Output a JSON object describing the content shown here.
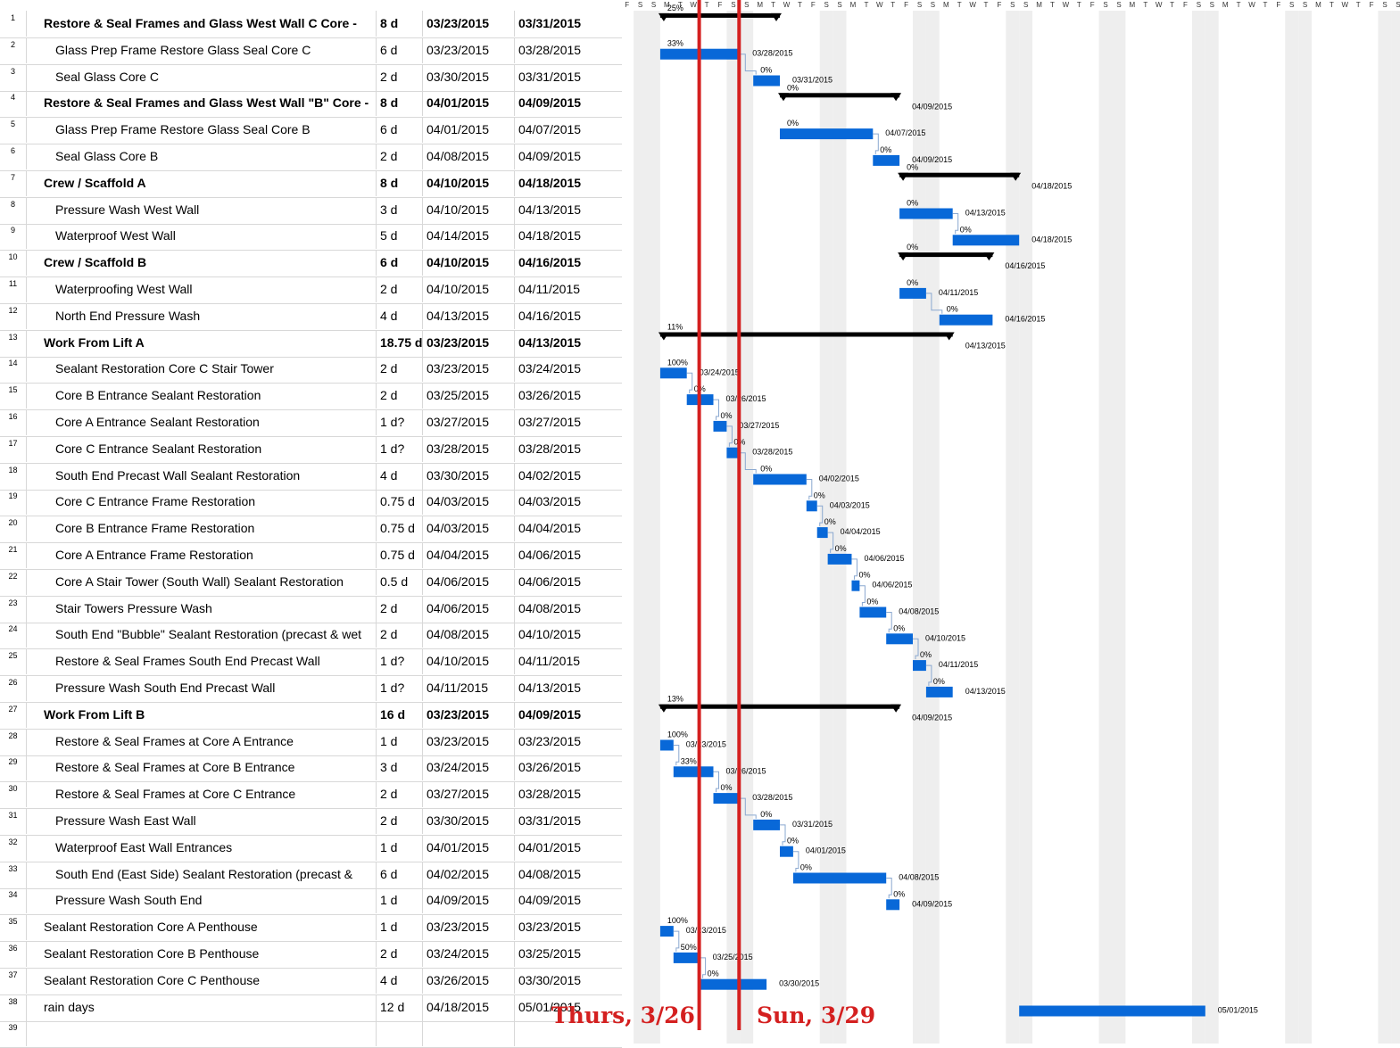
{
  "colors": {
    "bar": "#0868d8",
    "summary": "#000000",
    "weekend": "#eeeeee",
    "marker": "#d42020",
    "grid": "#d8d8d8"
  },
  "timeline": {
    "start_date": "2015-03-22",
    "days": 58,
    "day_letters": [
      "S",
      "M",
      "T",
      "W",
      "T",
      "F",
      "S"
    ]
  },
  "markers": [
    {
      "name": "thurs",
      "date": "2015-03-26",
      "label": "Thurs, 3/26"
    },
    {
      "name": "sun",
      "date": "2015-03-29",
      "label": "Sun, 3/29"
    }
  ],
  "tasks": [
    {
      "id": "1",
      "name": "Restore & Seal Frames and Glass West Wall C Core -",
      "dur": "8 d",
      "start": "03/23/2015",
      "finish": "03/31/2015",
      "summary": true,
      "level": 0,
      "bar": {
        "s": "2015-03-23",
        "e": "2015-04-01",
        "pct": "25%",
        "end": ""
      }
    },
    {
      "id": "2",
      "name": "Glass Prep Frame Restore Glass Seal Core C",
      "dur": "6 d",
      "start": "03/23/2015",
      "finish": "03/28/2015",
      "summary": false,
      "level": 1,
      "bar": {
        "s": "2015-03-23",
        "e": "2015-03-29",
        "pct": "33%",
        "end": "03/28/2015"
      }
    },
    {
      "id": "3",
      "name": "Seal Glass Core C",
      "dur": "2 d",
      "start": "03/30/2015",
      "finish": "03/31/2015",
      "summary": false,
      "level": 1,
      "bar": {
        "s": "2015-03-30",
        "e": "2015-04-01",
        "pct": "0%",
        "end": "03/31/2015"
      }
    },
    {
      "id": "4",
      "name": "Restore & Seal Frames and Glass West Wall \"B\" Core -",
      "dur": "8 d",
      "start": "04/01/2015",
      "finish": "04/09/2015",
      "summary": true,
      "level": 0,
      "bar": {
        "s": "2015-04-01",
        "e": "2015-04-10",
        "pct": "0%",
        "end": "04/09/2015"
      }
    },
    {
      "id": "5",
      "name": "Glass Prep Frame Restore Glass Seal Core B",
      "dur": "6 d",
      "start": "04/01/2015",
      "finish": "04/07/2015",
      "summary": false,
      "level": 1,
      "bar": {
        "s": "2015-04-01",
        "e": "2015-04-08",
        "pct": "0%",
        "end": "04/07/2015"
      }
    },
    {
      "id": "6",
      "name": "Seal Glass Core B",
      "dur": "2 d",
      "start": "04/08/2015",
      "finish": "04/09/2015",
      "summary": false,
      "level": 1,
      "bar": {
        "s": "2015-04-08",
        "e": "2015-04-10",
        "pct": "0%",
        "end": "04/09/2015"
      }
    },
    {
      "id": "7",
      "name": "Crew / Scaffold A",
      "dur": "8 d",
      "start": "04/10/2015",
      "finish": "04/18/2015",
      "summary": true,
      "level": 0,
      "bar": {
        "s": "2015-04-10",
        "e": "2015-04-19",
        "pct": "0%",
        "end": "04/18/2015"
      }
    },
    {
      "id": "8",
      "name": "Pressure Wash West Wall",
      "dur": "3 d",
      "start": "04/10/2015",
      "finish": "04/13/2015",
      "summary": false,
      "level": 1,
      "bar": {
        "s": "2015-04-10",
        "e": "2015-04-14",
        "pct": "0%",
        "end": "04/13/2015"
      }
    },
    {
      "id": "9",
      "name": "Waterproof West Wall",
      "dur": "5 d",
      "start": "04/14/2015",
      "finish": "04/18/2015",
      "summary": false,
      "level": 1,
      "bar": {
        "s": "2015-04-14",
        "e": "2015-04-19",
        "pct": "0%",
        "end": "04/18/2015"
      }
    },
    {
      "id": "10",
      "name": "Crew / Scaffold B",
      "dur": "6 d",
      "start": "04/10/2015",
      "finish": "04/16/2015",
      "summary": true,
      "level": 0,
      "bar": {
        "s": "2015-04-10",
        "e": "2015-04-17",
        "pct": "0%",
        "end": "04/16/2015"
      }
    },
    {
      "id": "11",
      "name": "Waterproofing West Wall",
      "dur": "2 d",
      "start": "04/10/2015",
      "finish": "04/11/2015",
      "summary": false,
      "level": 1,
      "bar": {
        "s": "2015-04-10",
        "e": "2015-04-12",
        "pct": "0%",
        "end": "04/11/2015"
      }
    },
    {
      "id": "12",
      "name": "North End Pressure Wash",
      "dur": "4 d",
      "start": "04/13/2015",
      "finish": "04/16/2015",
      "summary": false,
      "level": 1,
      "bar": {
        "s": "2015-04-13",
        "e": "2015-04-17",
        "pct": "0%",
        "end": "04/16/2015"
      }
    },
    {
      "id": "13",
      "name": "Work From Lift A",
      "dur": "18.75 d",
      "start": "03/23/2015",
      "finish": "04/13/2015",
      "summary": true,
      "level": 0,
      "bar": {
        "s": "2015-03-23",
        "e": "2015-04-14",
        "pct": "11%",
        "end": "04/13/2015"
      }
    },
    {
      "id": "14",
      "name": "Sealant Restoration Core C Stair Tower",
      "dur": "2 d",
      "start": "03/23/2015",
      "finish": "03/24/2015",
      "summary": false,
      "level": 1,
      "bar": {
        "s": "2015-03-23",
        "e": "2015-03-25",
        "pct": "100%",
        "end": "03/24/2015"
      }
    },
    {
      "id": "15",
      "name": "Core B Entrance Sealant Restoration",
      "dur": "2 d",
      "start": "03/25/2015",
      "finish": "03/26/2015",
      "summary": false,
      "level": 1,
      "bar": {
        "s": "2015-03-25",
        "e": "2015-03-27",
        "pct": "0%",
        "end": "03/26/2015"
      }
    },
    {
      "id": "16",
      "name": "Core A Entrance Sealant Restoration",
      "dur": "1 d?",
      "start": "03/27/2015",
      "finish": "03/27/2015",
      "summary": false,
      "level": 1,
      "bar": {
        "s": "2015-03-27",
        "e": "2015-03-28",
        "pct": "0%",
        "end": "03/27/2015"
      }
    },
    {
      "id": "17",
      "name": "Core C Entrance Sealant Restoration",
      "dur": "1 d?",
      "start": "03/28/2015",
      "finish": "03/28/2015",
      "summary": false,
      "level": 1,
      "bar": {
        "s": "2015-03-28",
        "e": "2015-03-29",
        "pct": "0%",
        "end": "03/28/2015"
      }
    },
    {
      "id": "18",
      "name": "South End Precast Wall Sealant Restoration",
      "dur": "4 d",
      "start": "03/30/2015",
      "finish": "04/02/2015",
      "summary": false,
      "level": 1,
      "bar": {
        "s": "2015-03-30",
        "e": "2015-04-03",
        "pct": "0%",
        "end": "04/02/2015"
      }
    },
    {
      "id": "19",
      "name": "Core C Entrance Frame Restoration",
      "dur": "0.75 d",
      "start": "04/03/2015",
      "finish": "04/03/2015",
      "summary": false,
      "level": 1,
      "bar": {
        "s": "2015-04-03",
        "e": "2015-04-03.8",
        "pct": "0%",
        "end": "04/03/2015"
      }
    },
    {
      "id": "20",
      "name": "Core B Entrance Frame Restoration",
      "dur": "0.75 d",
      "start": "04/03/2015",
      "finish": "04/04/2015",
      "summary": false,
      "level": 1,
      "bar": {
        "s": "2015-04-03.8",
        "e": "2015-04-04.6",
        "pct": "0%",
        "end": "04/04/2015"
      }
    },
    {
      "id": "21",
      "name": "Core A Entrance Frame Restoration",
      "dur": "0.75 d",
      "start": "04/04/2015",
      "finish": "04/06/2015",
      "summary": false,
      "level": 1,
      "bar": {
        "s": "2015-04-04.6",
        "e": "2015-04-06.4",
        "pct": "0%",
        "end": "04/06/2015"
      }
    },
    {
      "id": "22",
      "name": "Core A Stair Tower (South Wall) Sealant Restoration",
      "dur": "0.5 d",
      "start": "04/06/2015",
      "finish": "04/06/2015",
      "summary": false,
      "level": 1,
      "bar": {
        "s": "2015-04-06.4",
        "e": "2015-04-07",
        "pct": "0%",
        "end": "04/06/2015"
      }
    },
    {
      "id": "23",
      "name": "Stair Towers Pressure Wash",
      "dur": "2 d",
      "start": "04/06/2015",
      "finish": "04/08/2015",
      "summary": false,
      "level": 1,
      "bar": {
        "s": "2015-04-07",
        "e": "2015-04-09",
        "pct": "0%",
        "end": "04/08/2015"
      }
    },
    {
      "id": "24",
      "name": "South End \"Bubble\" Sealant Restoration (precast & wet",
      "dur": "2 d",
      "start": "04/08/2015",
      "finish": "04/10/2015",
      "summary": false,
      "level": 1,
      "bar": {
        "s": "2015-04-09",
        "e": "2015-04-11",
        "pct": "0%",
        "end": "04/10/2015"
      }
    },
    {
      "id": "25",
      "name": "Restore & Seal Frames South End Precast Wall",
      "dur": "1 d?",
      "start": "04/10/2015",
      "finish": "04/11/2015",
      "summary": false,
      "level": 1,
      "bar": {
        "s": "2015-04-11",
        "e": "2015-04-12",
        "pct": "0%",
        "end": "04/11/2015"
      }
    },
    {
      "id": "26",
      "name": "Pressure Wash South End Precast Wall",
      "dur": "1 d?",
      "start": "04/11/2015",
      "finish": "04/13/2015",
      "summary": false,
      "level": 1,
      "bar": {
        "s": "2015-04-12",
        "e": "2015-04-14",
        "pct": "0%",
        "end": "04/13/2015"
      }
    },
    {
      "id": "27",
      "name": "Work From Lift B",
      "dur": "16 d",
      "start": "03/23/2015",
      "finish": "04/09/2015",
      "summary": true,
      "level": 0,
      "bar": {
        "s": "2015-03-23",
        "e": "2015-04-10",
        "pct": "13%",
        "end": "04/09/2015"
      }
    },
    {
      "id": "28",
      "name": "Restore & Seal Frames at Core A Entrance",
      "dur": "1 d",
      "start": "03/23/2015",
      "finish": "03/23/2015",
      "summary": false,
      "level": 1,
      "bar": {
        "s": "2015-03-23",
        "e": "2015-03-24",
        "pct": "100%",
        "end": "03/23/2015"
      }
    },
    {
      "id": "29",
      "name": "Restore & Seal Frames at Core B Entrance",
      "dur": "3 d",
      "start": "03/24/2015",
      "finish": "03/26/2015",
      "summary": false,
      "level": 1,
      "bar": {
        "s": "2015-03-24",
        "e": "2015-03-27",
        "pct": "33%",
        "end": "03/26/2015"
      }
    },
    {
      "id": "30",
      "name": "Restore & Seal Frames at Core C Entrance",
      "dur": "2 d",
      "start": "03/27/2015",
      "finish": "03/28/2015",
      "summary": false,
      "level": 1,
      "bar": {
        "s": "2015-03-27",
        "e": "2015-03-29",
        "pct": "0%",
        "end": "03/28/2015"
      }
    },
    {
      "id": "31",
      "name": "Pressure Wash East Wall",
      "dur": "2 d",
      "start": "03/30/2015",
      "finish": "03/31/2015",
      "summary": false,
      "level": 1,
      "bar": {
        "s": "2015-03-30",
        "e": "2015-04-01",
        "pct": "0%",
        "end": "03/31/2015"
      }
    },
    {
      "id": "32",
      "name": "Waterproof East Wall Entrances",
      "dur": "1 d",
      "start": "04/01/2015",
      "finish": "04/01/2015",
      "summary": false,
      "level": 1,
      "bar": {
        "s": "2015-04-01",
        "e": "2015-04-02",
        "pct": "0%",
        "end": "04/01/2015"
      }
    },
    {
      "id": "33",
      "name": "South End (East Side) Sealant Restoration (precast &",
      "dur": "6 d",
      "start": "04/02/2015",
      "finish": "04/08/2015",
      "summary": false,
      "level": 1,
      "bar": {
        "s": "2015-04-02",
        "e": "2015-04-09",
        "pct": "0%",
        "end": "04/08/2015"
      }
    },
    {
      "id": "34",
      "name": "Pressure Wash South End",
      "dur": "1 d",
      "start": "04/09/2015",
      "finish": "04/09/2015",
      "summary": false,
      "level": 1,
      "bar": {
        "s": "2015-04-09",
        "e": "2015-04-10",
        "pct": "0%",
        "end": "04/09/2015"
      }
    },
    {
      "id": "35",
      "name": "Sealant Restoration Core A Penthouse",
      "dur": "1 d",
      "start": "03/23/2015",
      "finish": "03/23/2015",
      "summary": false,
      "level": 0,
      "bar": {
        "s": "2015-03-23",
        "e": "2015-03-24",
        "pct": "100%",
        "end": "03/23/2015"
      }
    },
    {
      "id": "36",
      "name": "Sealant Restoration Core B Penthouse",
      "dur": "2 d",
      "start": "03/24/2015",
      "finish": "03/25/2015",
      "summary": false,
      "level": 0,
      "bar": {
        "s": "2015-03-24",
        "e": "2015-03-26",
        "pct": "50%",
        "end": "03/25/2015"
      }
    },
    {
      "id": "37",
      "name": "Sealant Restoration Core C Penthouse",
      "dur": "4 d",
      "start": "03/26/2015",
      "finish": "03/30/2015",
      "summary": false,
      "level": 0,
      "bar": {
        "s": "2015-03-26",
        "e": "2015-03-31",
        "pct": "0%",
        "end": "03/30/2015"
      }
    },
    {
      "id": "38",
      "name": "rain days",
      "dur": "12 d",
      "start": "04/18/2015",
      "finish": "05/01/2015",
      "summary": false,
      "level": 0,
      "bar": {
        "s": "2015-04-19",
        "e": "2015-05-03",
        "pct": "",
        "end": "05/01/2015"
      }
    },
    {
      "id": "39",
      "name": "",
      "dur": "",
      "start": "",
      "finish": "",
      "summary": false,
      "level": 0,
      "bar": null
    }
  ]
}
